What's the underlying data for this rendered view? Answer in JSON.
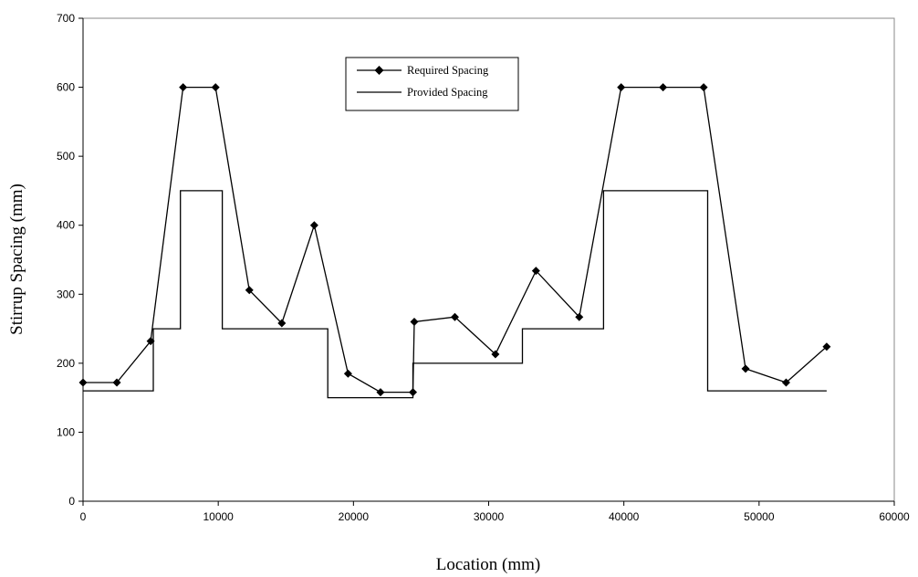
{
  "chart_data": {
    "type": "line",
    "title": "",
    "xlabel": "Location (mm)",
    "ylabel": "Stirrup Spacing (mm)",
    "xlim": [
      0,
      60000
    ],
    "ylim": [
      0,
      700
    ],
    "x_ticks": [
      0,
      10000,
      20000,
      30000,
      40000,
      50000,
      60000
    ],
    "y_ticks": [
      0,
      100,
      200,
      300,
      400,
      500,
      600,
      700
    ],
    "grid": false,
    "legend_position": "top-center",
    "series": [
      {
        "name": "Required Spacing",
        "style": "line-with-diamond-markers",
        "color": "#000000",
        "x": [
          0,
          2500,
          5000,
          7400,
          9800,
          12300,
          14700,
          17100,
          19600,
          22000,
          24400,
          24500,
          27500,
          30500,
          33500,
          36700,
          39800,
          42900,
          45900,
          49000,
          52000,
          55000
        ],
        "y": [
          172,
          172,
          232,
          600,
          600,
          306,
          258,
          400,
          185,
          158,
          158,
          260,
          267,
          213,
          334,
          267,
          600,
          600,
          600,
          192,
          172,
          224
        ]
      },
      {
        "name": "Provided Spacing",
        "style": "line",
        "color": "#000000",
        "x": [
          0,
          5200,
          5200,
          7200,
          7200,
          10300,
          10300,
          18100,
          18100,
          24400,
          24400,
          32500,
          32500,
          38500,
          38500,
          46200,
          46200,
          55000
        ],
        "y": [
          160,
          160,
          250,
          250,
          450,
          450,
          250,
          250,
          150,
          150,
          200,
          200,
          250,
          250,
          450,
          450,
          160,
          160
        ]
      }
    ]
  }
}
